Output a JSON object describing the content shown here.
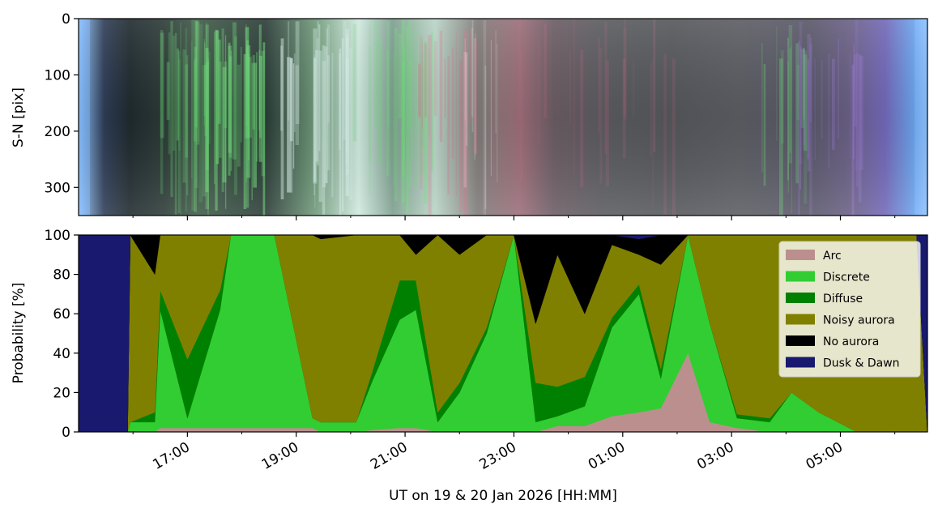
{
  "chart_data": [
    {
      "type": "heatmap",
      "description_visible": "keogram",
      "ylabel": "S-N [pix]",
      "ylim": [
        350,
        0
      ],
      "yticks": [
        0,
        100,
        200,
        300
      ],
      "xlim_hours": [
        15.0,
        30.6
      ],
      "colors": {
        "dark_sky": "#3b4a4a",
        "twilight": "#7fb6ff",
        "green_aurora": "#6fe07a",
        "pink_aurora": "#e06a8a",
        "purple_aurora": "#9b7ad8",
        "bright_white": "#d8f0ea"
      }
    },
    {
      "type": "area",
      "ylabel": "Probability [%]",
      "xlabel": "UT on 19 & 20 Jan 2026 [HH:MM]",
      "ylim": [
        0,
        100
      ],
      "yticks": [
        0,
        20,
        40,
        60,
        80,
        100
      ],
      "xtick_hours": [
        17,
        19,
        21,
        23,
        25,
        27,
        29
      ],
      "xtick_labels": [
        "17:00",
        "19:00",
        "21:00",
        "23:00",
        "01:00",
        "03:00",
        "05:00"
      ],
      "minor_tick_hours": [
        16,
        18,
        20,
        22,
        24,
        26,
        28,
        30
      ],
      "legend_position": "top-right",
      "series": [
        {
          "name": "Arc",
          "color": "#bc8f8f"
        },
        {
          "name": "Discrete",
          "color": "#32cd32"
        },
        {
          "name": "Diffuse",
          "color": "#008000"
        },
        {
          "name": "Noisy aurora",
          "color": "#808000"
        },
        {
          "name": "No aurora",
          "color": "#000000"
        },
        {
          "name": "Dusk & Dawn",
          "color": "#191970"
        }
      ],
      "x": [
        15.0,
        15.9,
        15.95,
        16.4,
        16.5,
        17.0,
        17.6,
        17.8,
        18.6,
        19.3,
        19.45,
        20.1,
        20.4,
        20.9,
        21.2,
        21.6,
        22.0,
        22.5,
        23.0,
        23.4,
        23.8,
        24.3,
        24.8,
        25.3,
        25.7,
        26.2,
        26.6,
        27.1,
        27.7,
        28.1,
        28.6,
        29.3,
        29.8,
        30.4,
        30.6
      ],
      "values": {
        "Arc": [
          0,
          0,
          0,
          0,
          2,
          2,
          2,
          2,
          2,
          2,
          0,
          0,
          1,
          2,
          2,
          0,
          0,
          0,
          0,
          0,
          3,
          3,
          8,
          10,
          12,
          40,
          5,
          2,
          0,
          0,
          0,
          0,
          0,
          0,
          0
        ],
        "Discrete": [
          0,
          0,
          5,
          5,
          60,
          5,
          60,
          100,
          100,
          5,
          5,
          5,
          25,
          55,
          60,
          5,
          20,
          50,
          100,
          5,
          5,
          10,
          45,
          60,
          15,
          70,
          50,
          5,
          5,
          20,
          10,
          0,
          0,
          0,
          0
        ],
        "Diffuse": [
          0,
          0,
          0,
          5,
          10,
          30,
          10,
          0,
          0,
          0,
          0,
          0,
          5,
          20,
          15,
          5,
          5,
          3,
          0,
          20,
          15,
          15,
          5,
          5,
          5,
          0,
          0,
          2,
          2,
          0,
          0,
          0,
          0,
          0,
          0
        ],
        "Noisy aurora": [
          0,
          0,
          95,
          70,
          28,
          63,
          28,
          0,
          0,
          93,
          93,
          95,
          69,
          23,
          13,
          90,
          65,
          47,
          0,
          30,
          67,
          32,
          37,
          15,
          53,
          20,
          45,
          91,
          93,
          80,
          90,
          100,
          100,
          100,
          0
        ],
        "No aurora": [
          0,
          0,
          0,
          20,
          0,
          0,
          0,
          0,
          0,
          0,
          2,
          0,
          0,
          0,
          10,
          0,
          10,
          0,
          0,
          45,
          10,
          40,
          5,
          8,
          15,
          10,
          0,
          0,
          0,
          0,
          0,
          0,
          0,
          0,
          0
        ],
        "Dusk & Dawn": [
          100,
          100,
          0,
          0,
          0,
          0,
          0,
          0,
          0,
          0,
          0,
          0,
          0,
          0,
          0,
          0,
          0,
          0,
          0,
          0,
          0,
          0,
          0,
          2,
          0,
          0,
          0,
          0,
          0,
          0,
          0,
          0,
          0,
          0,
          100
        ]
      }
    }
  ]
}
